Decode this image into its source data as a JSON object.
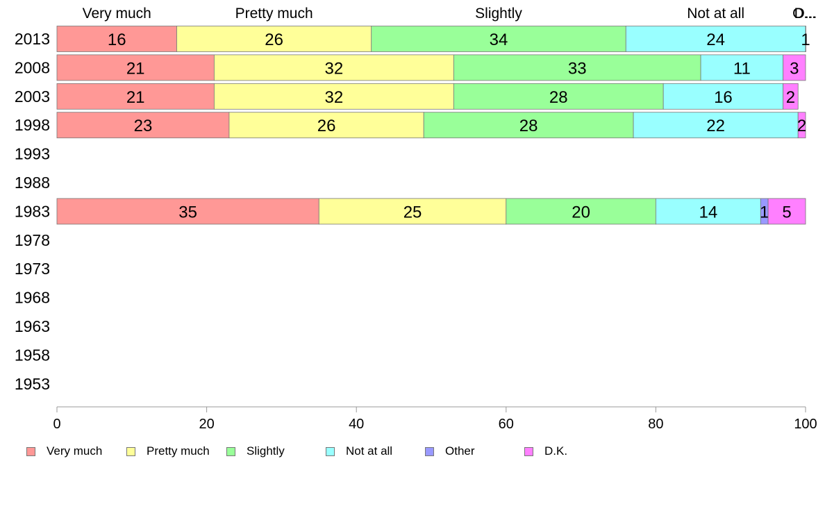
{
  "chart_data": {
    "type": "bar",
    "orientation": "horizontal",
    "stacked": true,
    "categories": [
      "2013",
      "2008",
      "2003",
      "1998",
      "1993",
      "1988",
      "1983",
      "1978",
      "1973",
      "1968",
      "1963",
      "1958",
      "1953"
    ],
    "series": [
      {
        "name": "Very much",
        "color": "#ff9896",
        "values": [
          16,
          21,
          21,
          23,
          null,
          null,
          35,
          null,
          null,
          null,
          null,
          null,
          null
        ]
      },
      {
        "name": "Pretty much",
        "color": "#ffff99",
        "values": [
          26,
          32,
          32,
          26,
          null,
          null,
          25,
          null,
          null,
          null,
          null,
          null,
          null
        ]
      },
      {
        "name": "Slightly",
        "color": "#99ff99",
        "values": [
          34,
          33,
          28,
          28,
          null,
          null,
          20,
          null,
          null,
          null,
          null,
          null,
          null
        ]
      },
      {
        "name": "Not at all",
        "color": "#99ffff",
        "values": [
          24,
          11,
          16,
          22,
          null,
          null,
          14,
          null,
          null,
          null,
          null,
          null,
          null
        ]
      },
      {
        "name": "Other",
        "color": "#9999ff",
        "values": [
          0,
          0,
          0,
          0,
          null,
          null,
          1,
          null,
          null,
          null,
          null,
          null,
          null
        ]
      },
      {
        "name": "D.K.",
        "color": "#ff80ff",
        "values": [
          1,
          3,
          2,
          2,
          null,
          null,
          5,
          null,
          null,
          null,
          null,
          null,
          null
        ]
      }
    ],
    "header_labels": [
      "Very much",
      "Pretty much",
      "Slightly",
      "Not at all",
      "O...",
      "D..."
    ],
    "xlim": [
      0,
      100
    ],
    "xticks": [
      0,
      20,
      40,
      60,
      80,
      100
    ],
    "legend_position": "bottom",
    "grid": false
  }
}
